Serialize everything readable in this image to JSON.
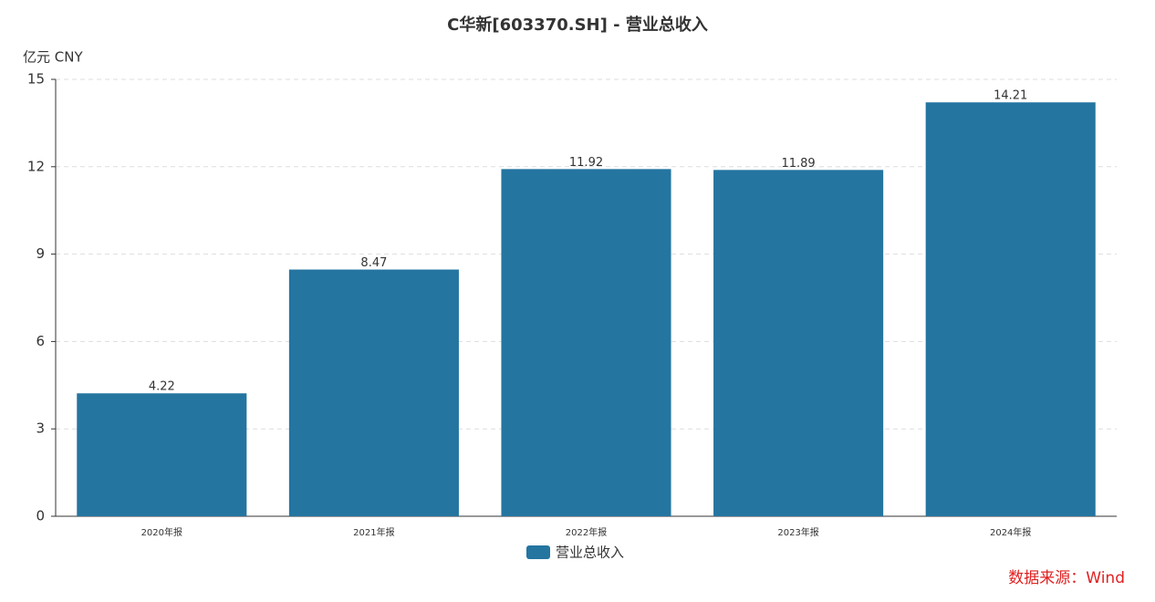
{
  "chart_data": {
    "type": "bar",
    "title": "C华新[603370.SH] - 营业总收入",
    "y_unit": "亿元  CNY",
    "categories": [
      "2020年报",
      "2021年报",
      "2022年报",
      "2023年报",
      "2024年报"
    ],
    "series": [
      {
        "name": "营业总收入",
        "color": "#2475a0",
        "values": [
          4.22,
          8.47,
          11.92,
          11.89,
          14.21
        ]
      }
    ],
    "ylim": [
      0,
      15
    ],
    "yticks": [
      0,
      3,
      6,
      9,
      12,
      15
    ],
    "grid": true,
    "legend": "bottom",
    "source": "数据来源：Wind"
  }
}
